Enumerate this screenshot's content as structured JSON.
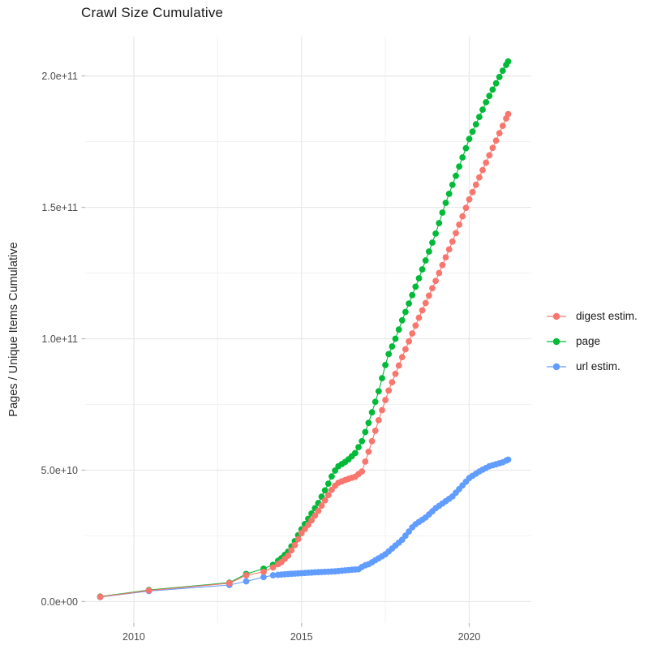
{
  "chart_data": {
    "type": "scatter",
    "title": "Crawl Size Cumulative",
    "xlabel": "",
    "ylabel": "Pages / Unique Items Cumulative",
    "value_unit": "items x 1e9 (values below given in billions)",
    "grid": true,
    "legend_position": "right",
    "x_axis": {
      "tick_labels": [
        "2010",
        "2015",
        "2020"
      ],
      "tick_values": [
        2010,
        2015,
        2020
      ],
      "minor_ticks": [
        2012.5,
        2017.5
      ],
      "domain": [
        2008.55,
        2021.85
      ]
    },
    "y_axis": {
      "tick_labels": [
        "0.0e+00",
        "5.0e+10",
        "1.0e+11",
        "1.5e+11",
        "2.0e+11"
      ],
      "tick_values_e9": [
        0,
        50,
        100,
        150,
        200
      ],
      "minor_ticks_e9": [
        25,
        75,
        125,
        175
      ],
      "domain_e9": [
        -8.2,
        215
      ]
    },
    "series": [
      {
        "name": "digest estim.",
        "color": "#F8766D",
        "points_year_e9": [
          [
            2009.0,
            1.8
          ],
          [
            2010.45,
            4.2
          ],
          [
            2012.85,
            7.0
          ],
          [
            2013.35,
            10.0
          ],
          [
            2013.87,
            11.3
          ],
          [
            2014.15,
            13
          ],
          [
            2014.4,
            15
          ],
          [
            2014.6,
            17.5
          ],
          [
            2014.8,
            21.5
          ],
          [
            2015.0,
            26
          ],
          [
            2015.25,
            30
          ],
          [
            2015.5,
            34.5
          ],
          [
            2015.75,
            39.5
          ],
          [
            2015.95,
            43.5
          ],
          [
            2016.1,
            45.2
          ],
          [
            2016.35,
            46.5
          ],
          [
            2016.6,
            47.5
          ],
          [
            2016.8,
            49.5
          ],
          [
            2017.0,
            57
          ],
          [
            2017.3,
            69
          ],
          [
            2017.56,
            79
          ],
          [
            2018.0,
            93
          ],
          [
            2018.5,
            108
          ],
          [
            2019.0,
            122
          ],
          [
            2019.5,
            137
          ],
          [
            2020.0,
            153
          ],
          [
            2020.5,
            167
          ],
          [
            2021.0,
            181
          ],
          [
            2021.16,
            185.5
          ]
        ]
      },
      {
        "name": "page",
        "color": "#00BA38",
        "points_year_e9": [
          [
            2009.0,
            1.9
          ],
          [
            2010.45,
            4.4
          ],
          [
            2012.85,
            7.2
          ],
          [
            2013.35,
            10.5
          ],
          [
            2013.87,
            12.5
          ],
          [
            2014.15,
            14
          ],
          [
            2014.4,
            16.5
          ],
          [
            2014.6,
            19
          ],
          [
            2014.8,
            23
          ],
          [
            2015.0,
            27.5
          ],
          [
            2015.25,
            32.5
          ],
          [
            2015.5,
            37.5
          ],
          [
            2015.75,
            43.5
          ],
          [
            2015.95,
            49
          ],
          [
            2016.1,
            51.5
          ],
          [
            2016.35,
            53.5
          ],
          [
            2016.6,
            56.5
          ],
          [
            2016.8,
            61
          ],
          [
            2017.0,
            68
          ],
          [
            2017.3,
            80
          ],
          [
            2017.56,
            93
          ],
          [
            2017.8,
            100
          ],
          [
            2018.0,
            107
          ],
          [
            2018.5,
            123
          ],
          [
            2019.0,
            140
          ],
          [
            2019.25,
            150
          ],
          [
            2019.6,
            162
          ],
          [
            2020.0,
            176
          ],
          [
            2020.5,
            190
          ],
          [
            2021.0,
            202
          ],
          [
            2021.16,
            205.5
          ]
        ]
      },
      {
        "name": "url estim.",
        "color": "#619CFF",
        "points_year_e9": [
          [
            2009.0,
            1.7
          ],
          [
            2010.45,
            4.0
          ],
          [
            2012.85,
            6.3
          ],
          [
            2013.35,
            7.7
          ],
          [
            2013.87,
            9.3
          ],
          [
            2014.15,
            10
          ],
          [
            2014.5,
            10.4
          ],
          [
            2015.0,
            10.8
          ],
          [
            2015.5,
            11.2
          ],
          [
            2016.0,
            11.5
          ],
          [
            2016.4,
            12
          ],
          [
            2016.7,
            12.3
          ],
          [
            2016.85,
            13.6
          ],
          [
            2017.0,
            14.2
          ],
          [
            2017.5,
            18
          ],
          [
            2018.0,
            23.5
          ],
          [
            2018.35,
            29
          ],
          [
            2018.7,
            32
          ],
          [
            2019.0,
            35.5
          ],
          [
            2019.5,
            40
          ],
          [
            2020.0,
            47
          ],
          [
            2020.3,
            49.5
          ],
          [
            2020.6,
            51.5
          ],
          [
            2021.0,
            53
          ],
          [
            2021.16,
            54
          ]
        ]
      }
    ],
    "dense_dots": {
      "start_year": 2014.3,
      "interval_years": 0.1,
      "note": "dots are drawn roughly monthly from 2014 onward; points_year_e9 are values read from the figure"
    },
    "style": {
      "grid_major_color": "#E8E8E8",
      "grid_minor_color": "#F3F3F3",
      "tick_mark_color": "#BEBEBE",
      "axis_text_color": "#4D4D4D",
      "point_radius": 3.9
    }
  }
}
